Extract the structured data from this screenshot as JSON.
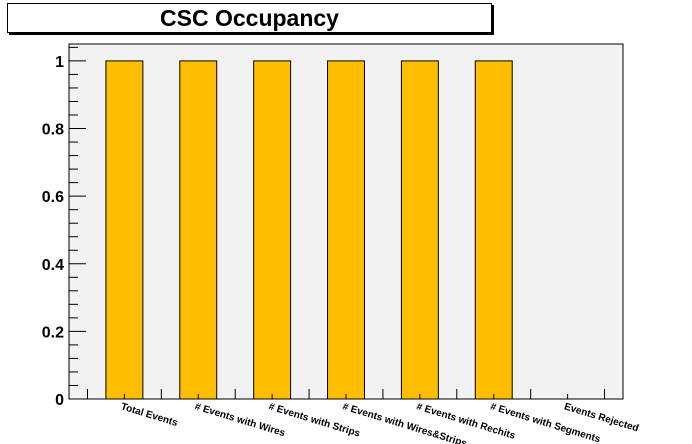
{
  "chart_data": {
    "type": "bar",
    "title": "CSC Occupancy",
    "categories": [
      "Total Events",
      "# Events with Wires",
      "# Events with Strips",
      "# Events with Wires&Strips",
      "# Events with Rechits",
      "# Events with Segments",
      "Events Rejected"
    ],
    "values": [
      1,
      1,
      1,
      1,
      1,
      1,
      0
    ],
    "ylim": [
      0,
      1.05
    ],
    "xlim": [
      -0.25,
      7.25
    ],
    "yticks": [
      "0",
      "0.2",
      "0.4",
      "0.6",
      "0.8",
      "1"
    ],
    "xlabel": "",
    "ylabel": "",
    "grid": false,
    "bar_color": "#ffbf00",
    "frame_fill": "#f2f2f2"
  }
}
